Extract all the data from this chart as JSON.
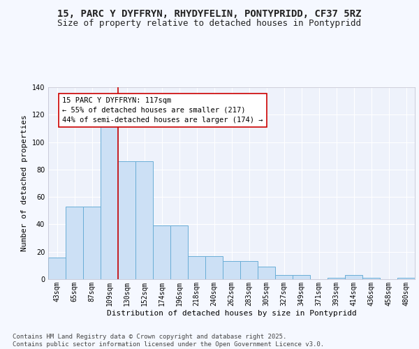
{
  "title_line1": "15, PARC Y DYFFRYN, RHYDYFELIN, PONTYPRIDD, CF37 5RZ",
  "title_line2": "Size of property relative to detached houses in Pontypridd",
  "xlabel": "Distribution of detached houses by size in Pontypridd",
  "ylabel": "Number of detached properties",
  "categories": [
    "43sqm",
    "65sqm",
    "87sqm",
    "109sqm",
    "130sqm",
    "152sqm",
    "174sqm",
    "196sqm",
    "218sqm",
    "240sqm",
    "262sqm",
    "283sqm",
    "305sqm",
    "327sqm",
    "349sqm",
    "371sqm",
    "393sqm",
    "414sqm",
    "436sqm",
    "458sqm",
    "480sqm"
  ],
  "values": [
    16,
    53,
    53,
    116,
    86,
    86,
    39,
    39,
    17,
    17,
    13,
    13,
    9,
    3,
    3,
    0,
    1,
    3,
    1,
    0,
    1
  ],
  "bar_color": "#cce0f5",
  "bar_edge_color": "#6aaed6",
  "red_line_x": 3.5,
  "annotation_text": "15 PARC Y DYFFRYN: 117sqm\n← 55% of detached houses are smaller (217)\n44% of semi-detached houses are larger (174) →",
  "annotation_box_color": "#ffffff",
  "annotation_box_edge": "#cc0000",
  "red_line_color": "#cc0000",
  "ylim": [
    0,
    140
  ],
  "yticks": [
    0,
    20,
    40,
    60,
    80,
    100,
    120,
    140
  ],
  "footer_text": "Contains HM Land Registry data © Crown copyright and database right 2025.\nContains public sector information licensed under the Open Government Licence v3.0.",
  "bg_color": "#eef2fb",
  "grid_color": "#ffffff",
  "title_fontsize": 10,
  "subtitle_fontsize": 9,
  "axis_label_fontsize": 8,
  "tick_fontsize": 7,
  "annotation_fontsize": 7.5,
  "footer_fontsize": 6.5
}
